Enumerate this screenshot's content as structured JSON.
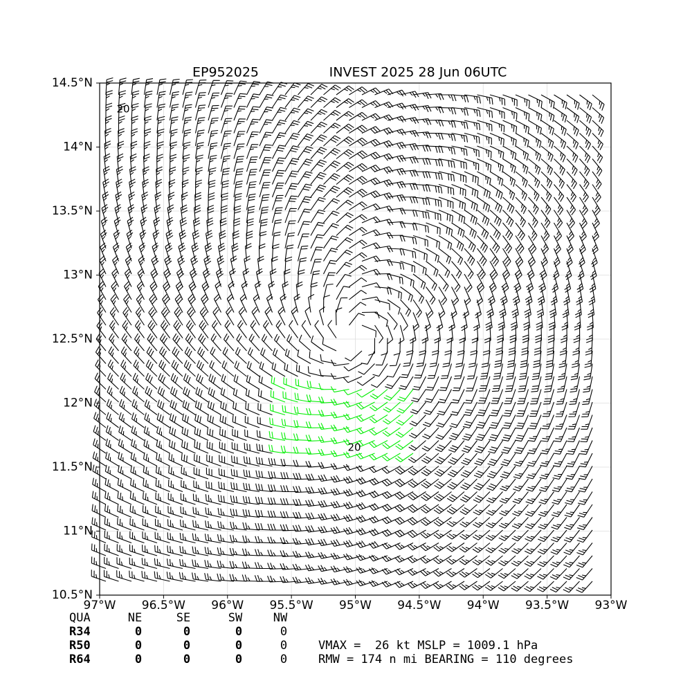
{
  "chart_data": {
    "type": "barbs",
    "title_left": "EP952025",
    "title_right": "INVEST 2025 28 Jun 06UTC",
    "xlim": [
      -97,
      -93
    ],
    "xticks": [
      {
        "value": -97,
        "label": "97°W"
      },
      {
        "value": -96.5,
        "label": "96.5°W"
      },
      {
        "value": -96,
        "label": "96°W"
      },
      {
        "value": -95.5,
        "label": "95.5°W"
      },
      {
        "value": -95,
        "label": "95°W"
      },
      {
        "value": -94.5,
        "label": "94.5°W"
      },
      {
        "value": -94,
        "label": "94°W"
      },
      {
        "value": -93.5,
        "label": "93.5°W"
      },
      {
        "value": -93,
        "label": "93°W"
      }
    ],
    "ylim": [
      10.5,
      14.5
    ],
    "yticks": [
      {
        "value": 10.5,
        "label": "10.5°N"
      },
      {
        "value": 11,
        "label": "11°N"
      },
      {
        "value": 11.5,
        "label": "11.5°N"
      },
      {
        "value": 12,
        "label": "12°N"
      },
      {
        "value": 12.5,
        "label": "12.5°N"
      },
      {
        "value": 13,
        "label": "13°N"
      },
      {
        "value": 13.5,
        "label": "13.5°N"
      },
      {
        "value": 14,
        "label": "14°N"
      },
      {
        "value": 14.5,
        "label": "14.5°N"
      }
    ],
    "grid": true,
    "contour_levels": [
      20
    ],
    "contour_color": "#00ee00"
  },
  "wind_radii": {
    "header": [
      "QUA",
      "NE",
      "SE",
      "SW",
      "NW"
    ],
    "rows": [
      [
        "R34",
        0,
        0,
        0,
        0
      ],
      [
        "R50",
        0,
        0,
        0,
        0
      ],
      [
        "R64",
        0,
        0,
        0,
        0
      ]
    ]
  },
  "storm_info": [
    "VMAX =  26 kt MSLP = 1009.1 hPa",
    "RMW = 174 n mi BEARING = 110 degrees"
  ]
}
